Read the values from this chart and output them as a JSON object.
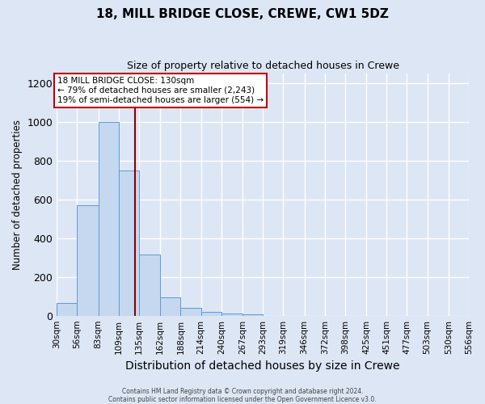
{
  "title": "18, MILL BRIDGE CLOSE, CREWE, CW1 5DZ",
  "subtitle": "Size of property relative to detached houses in Crewe",
  "xlabel": "Distribution of detached houses by size in Crewe",
  "ylabel": "Number of detached properties",
  "footer_line1": "Contains HM Land Registry data © Crown copyright and database right 2024.",
  "footer_line2": "Contains public sector information licensed under the Open Government Licence v3.0.",
  "bin_edges": [
    30,
    56,
    83,
    109,
    135,
    162,
    188,
    214,
    240,
    267,
    293,
    319,
    346,
    372,
    398,
    425,
    451,
    477,
    503,
    530,
    556
  ],
  "bar_heights": [
    65,
    570,
    1000,
    750,
    315,
    95,
    40,
    20,
    10,
    5,
    0,
    0,
    0,
    0,
    0,
    0,
    0,
    0,
    0,
    0
  ],
  "bar_color": "#c5d8f0",
  "bar_edge_color": "#5b9bd5",
  "property_size": 130,
  "red_line_color": "#8b0000",
  "annotation_text_line1": "18 MILL BRIDGE CLOSE: 130sqm",
  "annotation_text_line2": "← 79% of detached houses are smaller (2,243)",
  "annotation_text_line3": "19% of semi-detached houses are larger (554) →",
  "annotation_box_facecolor": "#ffffff",
  "annotation_box_edgecolor": "#c00000",
  "ylim": [
    0,
    1250
  ],
  "background_color": "#dde6f5",
  "plot_background_color": "#dde6f5",
  "grid_color": "#c8d4e8",
  "title_fontsize": 11,
  "subtitle_fontsize": 9,
  "tick_label_size": 7.5,
  "xlabel_size": 10,
  "ylabel_size": 8.5
}
